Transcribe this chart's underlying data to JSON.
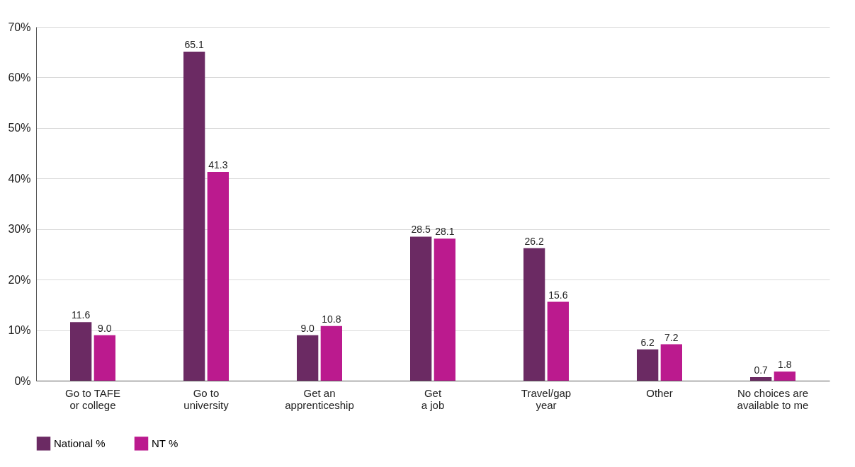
{
  "chart_data": {
    "type": "bar",
    "categories": [
      "Go to TAFE or college",
      "Go to university",
      "Get an apprenticeship",
      "Get a job",
      "Travel/gap year",
      "Other",
      "No choices are available to me"
    ],
    "series": [
      {
        "name": "National %",
        "color": "#6b2a63",
        "values": [
          11.6,
          65.1,
          9.0,
          28.5,
          26.2,
          6.2,
          0.7
        ],
        "value_labels": [
          "11.6",
          "65.1",
          "9.0",
          "28.5",
          "26.2",
          "6.2",
          "0.7"
        ]
      },
      {
        "name": "NT %",
        "color": "#bb1a8e",
        "values": [
          9.0,
          41.3,
          10.8,
          28.1,
          15.6,
          7.2,
          1.8
        ],
        "value_labels": [
          "9.0",
          "41.3",
          "10.8",
          "28.1",
          "15.6",
          "7.2",
          "1.8"
        ]
      }
    ],
    "ylim": [
      0,
      70
    ],
    "yticks": [
      {
        "value": 0,
        "label": "0%"
      },
      {
        "value": 10,
        "label": "10%"
      },
      {
        "value": 20,
        "label": "20%"
      },
      {
        "value": 30,
        "label": "30%"
      },
      {
        "value": 40,
        "label": "40%"
      },
      {
        "value": 50,
        "label": "50%"
      },
      {
        "value": 60,
        "label": "60%"
      },
      {
        "value": 70,
        "label": "70%"
      }
    ],
    "grid": "y",
    "legend": "bottom left"
  }
}
